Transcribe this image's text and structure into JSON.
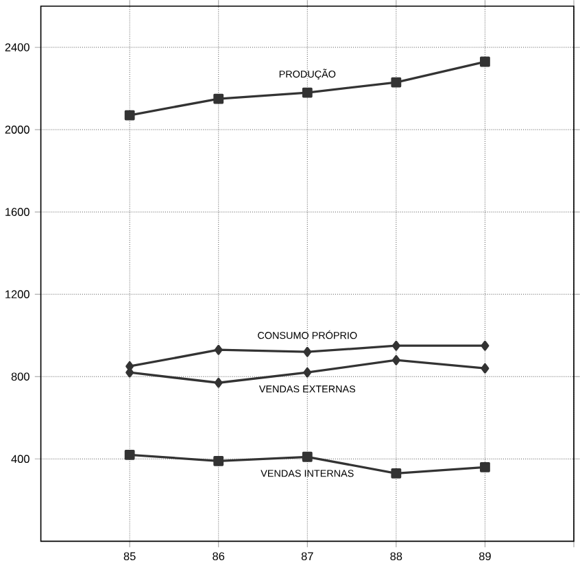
{
  "chart_data": {
    "type": "line",
    "x": [
      85,
      86,
      87,
      88,
      89
    ],
    "series": [
      {
        "name": "PRODUÇÃO",
        "color": "#333333",
        "marker": "square",
        "values": [
          2070,
          2150,
          2180,
          2230,
          2330
        ]
      },
      {
        "name": "CONSUMO PRÓPRIO",
        "color": "#333333",
        "marker": "diamond",
        "values": [
          850,
          930,
          920,
          950,
          950
        ]
      },
      {
        "name": "VENDAS EXTERNAS",
        "color": "#333333",
        "marker": "diamond",
        "values": [
          820,
          770,
          820,
          880,
          840
        ]
      },
      {
        "name": "VENDAS INTERNAS",
        "color": "#333333",
        "marker": "square",
        "values": [
          420,
          390,
          410,
          330,
          360
        ]
      }
    ],
    "xlim": [
      84,
      90
    ],
    "xticks": [
      85,
      86,
      87,
      88,
      89,
      {
        "value": 90,
        "label": null
      }
    ],
    "ylim": [
      0,
      2600
    ],
    "yticks": [
      400,
      800,
      1200,
      1600,
      2000,
      2400
    ],
    "grid": true,
    "legend": false,
    "line_style": "solid"
  }
}
